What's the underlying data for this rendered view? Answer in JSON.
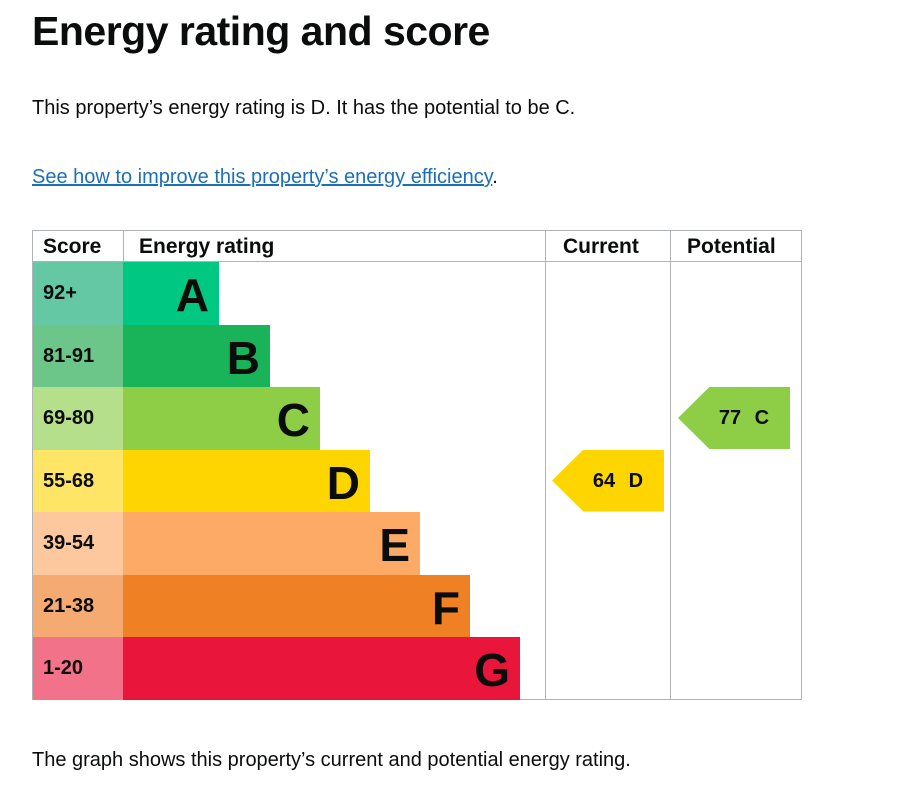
{
  "title": "Energy rating and score",
  "summary": "This property’s energy rating is D. It has the potential to be C.",
  "link": {
    "text": "See how to improve this property’s energy efficiency",
    "suffix": "."
  },
  "chart": {
    "headers": {
      "score": "Score",
      "rating": "Energy rating",
      "current": "Current",
      "potential": "Potential"
    },
    "bands": [
      {
        "score": "92+",
        "letter": "A",
        "color": "#00c781",
        "light": "#64c8a4"
      },
      {
        "score": "81-91",
        "letter": "B",
        "color": "#19b459",
        "light": "#6cc68a"
      },
      {
        "score": "69-80",
        "letter": "C",
        "color": "#8dce46",
        "light": "#b6df8c"
      },
      {
        "score": "55-68",
        "letter": "D",
        "color": "#ffd500",
        "light": "#ffe566"
      },
      {
        "score": "39-54",
        "letter": "E",
        "color": "#fcaa65",
        "light": "#fdc89e"
      },
      {
        "score": "21-38",
        "letter": "F",
        "color": "#ef8023",
        "light": "#f5aa72"
      },
      {
        "score": "1-20",
        "letter": "G",
        "color": "#e9153b",
        "light": "#f2728a"
      }
    ],
    "current": {
      "label": "64 D",
      "score": 64,
      "band": "D",
      "color": "#ffd500"
    },
    "potential": {
      "label": "77 C",
      "score": 77,
      "band": "C",
      "color": "#8dce46"
    }
  },
  "footer": "The graph shows this property’s current and potential energy rating."
}
